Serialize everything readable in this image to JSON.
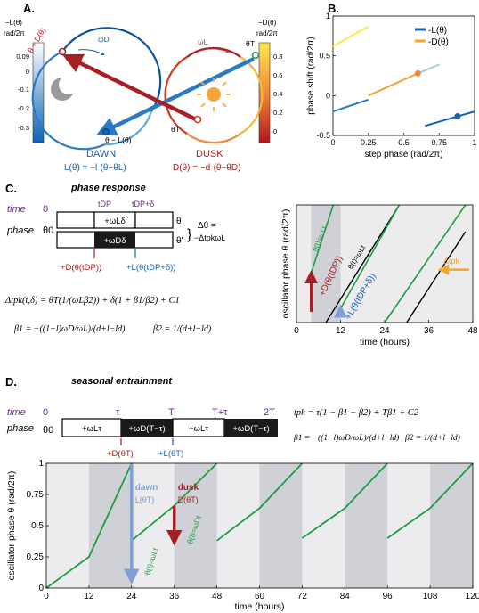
{
  "panels": {
    "A": {
      "letter": "A.",
      "left_colorbar": {
        "label_lines": [
          "−L(θ)",
          "rad/2π"
        ],
        "ticks": [
          "0.09",
          "0",
          "-0.1",
          "-0.2",
          "-0.3"
        ],
        "colors": [
          "#ffffff",
          "#0b63b8"
        ]
      },
      "right_colorbar": {
        "label_lines": [
          "−D(θ)",
          "rad/2π"
        ],
        "ticks": [
          "0.8",
          "0.6",
          "0.4",
          "0.2",
          "0"
        ],
        "colors": [
          "#ffe84c",
          "#b3161c"
        ]
      },
      "dawn_label": "DAWN",
      "dusk_label": "DUSK",
      "dawn_eq": "L(θ) = −l·(θ−θL)",
      "dusk_eq": "D(θ) = −d·(θ−θD)",
      "label_theta_D": "θ + D(θ)",
      "label_theta_T_minus_L": "θ − L(θ)",
      "label_omega_D": "ωD",
      "label_omega_L": "ωL",
      "label_theta_T_top": "θT",
      "label_theta_T_bottom": "θT",
      "icons": [
        "moon-icon",
        "sun-icon"
      ]
    },
    "B": {
      "letter": "B.",
      "chart_data": {
        "type": "line",
        "xlabel": "step phase (rad/2π)",
        "ylabel": "phase shift (rad/2π)",
        "xlim": [
          0,
          1
        ],
        "ylim": [
          -0.5,
          1
        ],
        "xticks": [
          "0",
          "0.25",
          "0.5",
          "0.75",
          "1"
        ],
        "yticks": [
          "-0.5",
          "0",
          "0.5",
          "1"
        ],
        "legend": [
          "-L(θ)",
          "-D(θ)"
        ],
        "legend_placement": "top-right",
        "series": [
          {
            "name": "-L(θ)",
            "color": "#0b63b8",
            "segments": [
              [
                [
                  0,
                  -0.2
                ],
                [
                  0.25,
                  -0.05
                ]
              ],
              [
                [
                  0.65,
                  -0.38
                ],
                [
                  0.88,
                  -0.26
                ],
                [
                  1,
                  -0.2
                ]
              ]
            ]
          },
          {
            "name": "-D(θ)",
            "color": "#f2a531",
            "segments": [
              [
                [
                  0,
                  0.62
                ],
                [
                  0.25,
                  0.87
                ]
              ],
              [
                [
                  0.25,
                  0.0
                ],
                [
                  0.6,
                  0.28
                ],
                [
                  0.75,
                  0.39
                ]
              ]
            ]
          }
        ],
        "markers": [
          {
            "series": "-D(θ)",
            "x": 0.6,
            "y": 0.28,
            "color": "#f08a38"
          },
          {
            "series": "-L(θ)",
            "x": 0.88,
            "y": -0.26,
            "color": "#1f5fa8"
          }
        ]
      }
    },
    "C": {
      "letter": "C.",
      "title": "phase response",
      "time_label": "time",
      "time_zero": "0",
      "t_dp": "tDP",
      "t_dp_delta": "tDP+δ",
      "phase_label": "phase",
      "theta0": "θ0",
      "box_top": "+ωLδ",
      "box_bottom": "+ωDδ",
      "theta": "θ",
      "theta_prime": "θ'",
      "delta_theta_eq": "Δθ =",
      "delta_theta_rhs": "−ΔtpkωL",
      "pulse_D": "+D(θ(tDP))",
      "pulse_L": "+L(θ(tDP+δ))",
      "eq_main": "Δtpk(t,δ) = θT(1/(ωLβ2)) + δ(1 + β1/β2) + C1",
      "eq_beta1": "β1 = −((1−l)ωD/ωL)/(d+l−ld)",
      "eq_beta2": "β2 = 1/(d+l−ld)",
      "chart_data": {
        "type": "line",
        "xlabel": "time (hours)",
        "ylabel": "oscillator phase θ (rad/2π)",
        "xlim": [
          0,
          48
        ],
        "xticks": [
          "0",
          "12",
          "24",
          "36",
          "48"
        ],
        "shaded_dark": [
          [
            4,
            12
          ]
        ],
        "line_labels": [
          "θ(t)=ωLt",
          "θ(t)=ωLt",
          "Δtpk",
          "+D(θ(tDP))",
          "+L(θ(tDP+δ))"
        ]
      }
    },
    "D": {
      "letter": "D.",
      "title": "seasonal entrainment",
      "time_label": "time",
      "time_zero": "0",
      "tau": "τ",
      "T": "T",
      "T_plus_tau": "T+τ",
      "twoT": "2T",
      "phase_label": "phase",
      "theta0": "θ0",
      "boxes": [
        "+ωLτ",
        "+ωD(T−τ)",
        "+ωLτ",
        "+ωD(T−τ)"
      ],
      "pulse_D": "+D(θT)",
      "pulse_L": "+L(θT)",
      "eq_tpk": "tpk = τ(1 − β1 − β2) + Tβ1 + C2",
      "eq_beta1": "β1 = −((1−l)ωD/ωL)/(d+l−ld)",
      "eq_beta2": "β2 = 1/(d+l−ld)",
      "dawn_label": "dawn",
      "dusk_label": "dusk",
      "dawn_arrow_label": "L(θT)",
      "dusk_arrow_label": "D(θT)",
      "line_label_a": "θ(t)=ωLt",
      "line_label_b": "θ(t)=ωDt",
      "chart_data": {
        "type": "line",
        "xlabel": "time (hours)",
        "ylabel": "oscillator phase θ (rad/2π)",
        "xlim": [
          0,
          120
        ],
        "ylim": [
          0,
          1
        ],
        "xticks": [
          "0",
          "12",
          "24",
          "36",
          "48",
          "60",
          "72",
          "84",
          "96",
          "108",
          "120"
        ],
        "yticks": [
          "0",
          "0.25",
          "0.5",
          "0.75",
          "1"
        ],
        "shaded_light": [
          [
            0,
            12
          ],
          [
            24,
            36
          ],
          [
            48,
            60
          ],
          [
            72,
            84
          ],
          [
            96,
            108
          ]
        ],
        "shaded_dark": [
          [
            12,
            24
          ],
          [
            36,
            48
          ],
          [
            60,
            72
          ],
          [
            84,
            96
          ],
          [
            108,
            120
          ]
        ],
        "series": [
          {
            "name": "phase",
            "color": "#1f9e46",
            "segments": [
              [
                [
                  0,
                  0
                ],
                [
                  12,
                  0.25
                ],
                [
                  24,
                  1
                ]
              ],
              [
                [
                  24,
                  0.38
                ],
                [
                  36,
                  0.66
                ],
                [
                  48,
                  1.02
                ]
              ],
              [
                [
                  48,
                  0.38
                ],
                [
                  60,
                  0.64
                ],
                [
                  72,
                  1.02
                ]
              ],
              [
                [
                  72,
                  0.4
                ],
                [
                  84,
                  0.64
                ],
                [
                  96,
                  1.02
                ]
              ],
              [
                [
                  96,
                  0.4
                ],
                [
                  108,
                  0.64
                ],
                [
                  120,
                  1.02
                ]
              ]
            ]
          }
        ],
        "arrows": [
          {
            "name": "dawn",
            "x": 24,
            "from": 1.0,
            "to": 0.12,
            "color": "#7f9fd6"
          },
          {
            "name": "dusk",
            "x": 36,
            "from": 0.66,
            "to": 0.43,
            "color": "#a81e22"
          }
        ]
      }
    }
  }
}
